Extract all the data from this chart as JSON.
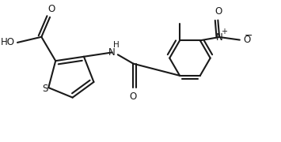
{
  "background_color": "#ffffff",
  "line_color": "#1a1a1a",
  "line_width": 1.5,
  "figsize": [
    3.55,
    1.8
  ],
  "dpi": 100,
  "xlim": [
    0,
    9.5
  ],
  "ylim": [
    0,
    4.8
  ]
}
